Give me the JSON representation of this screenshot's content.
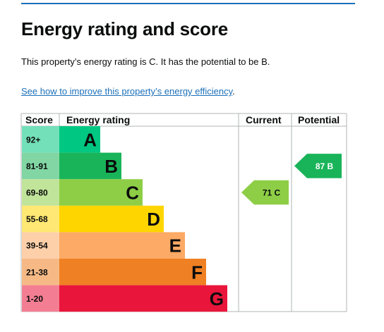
{
  "heading": "Energy rating and score",
  "summary": "This property’s energy rating is C. It has the potential to be B.",
  "improve_link": "See how to improve this property’s energy efficiency",
  "improve_link_suffix": ".",
  "colors": {
    "link": "#1d70b8",
    "A": "#00c781",
    "B": "#19b459",
    "C": "#8dce46",
    "D": "#ffd500",
    "E": "#fcaa65",
    "F": "#ef8023",
    "G": "#e9153b"
  },
  "chart_data": {
    "type": "table",
    "columns": [
      "Score",
      "Energy rating",
      "Current",
      "Potential"
    ],
    "bands": [
      {
        "range": "92+",
        "letter": "A"
      },
      {
        "range": "81-91",
        "letter": "B"
      },
      {
        "range": "69-80",
        "letter": "C"
      },
      {
        "range": "55-68",
        "letter": "D"
      },
      {
        "range": "39-54",
        "letter": "E"
      },
      {
        "range": "21-38",
        "letter": "F"
      },
      {
        "range": "1-20",
        "letter": "G"
      }
    ],
    "current": {
      "score": 71,
      "letter": "C",
      "label": "71 C"
    },
    "potential": {
      "score": 87,
      "letter": "B",
      "label": "87 B"
    }
  }
}
